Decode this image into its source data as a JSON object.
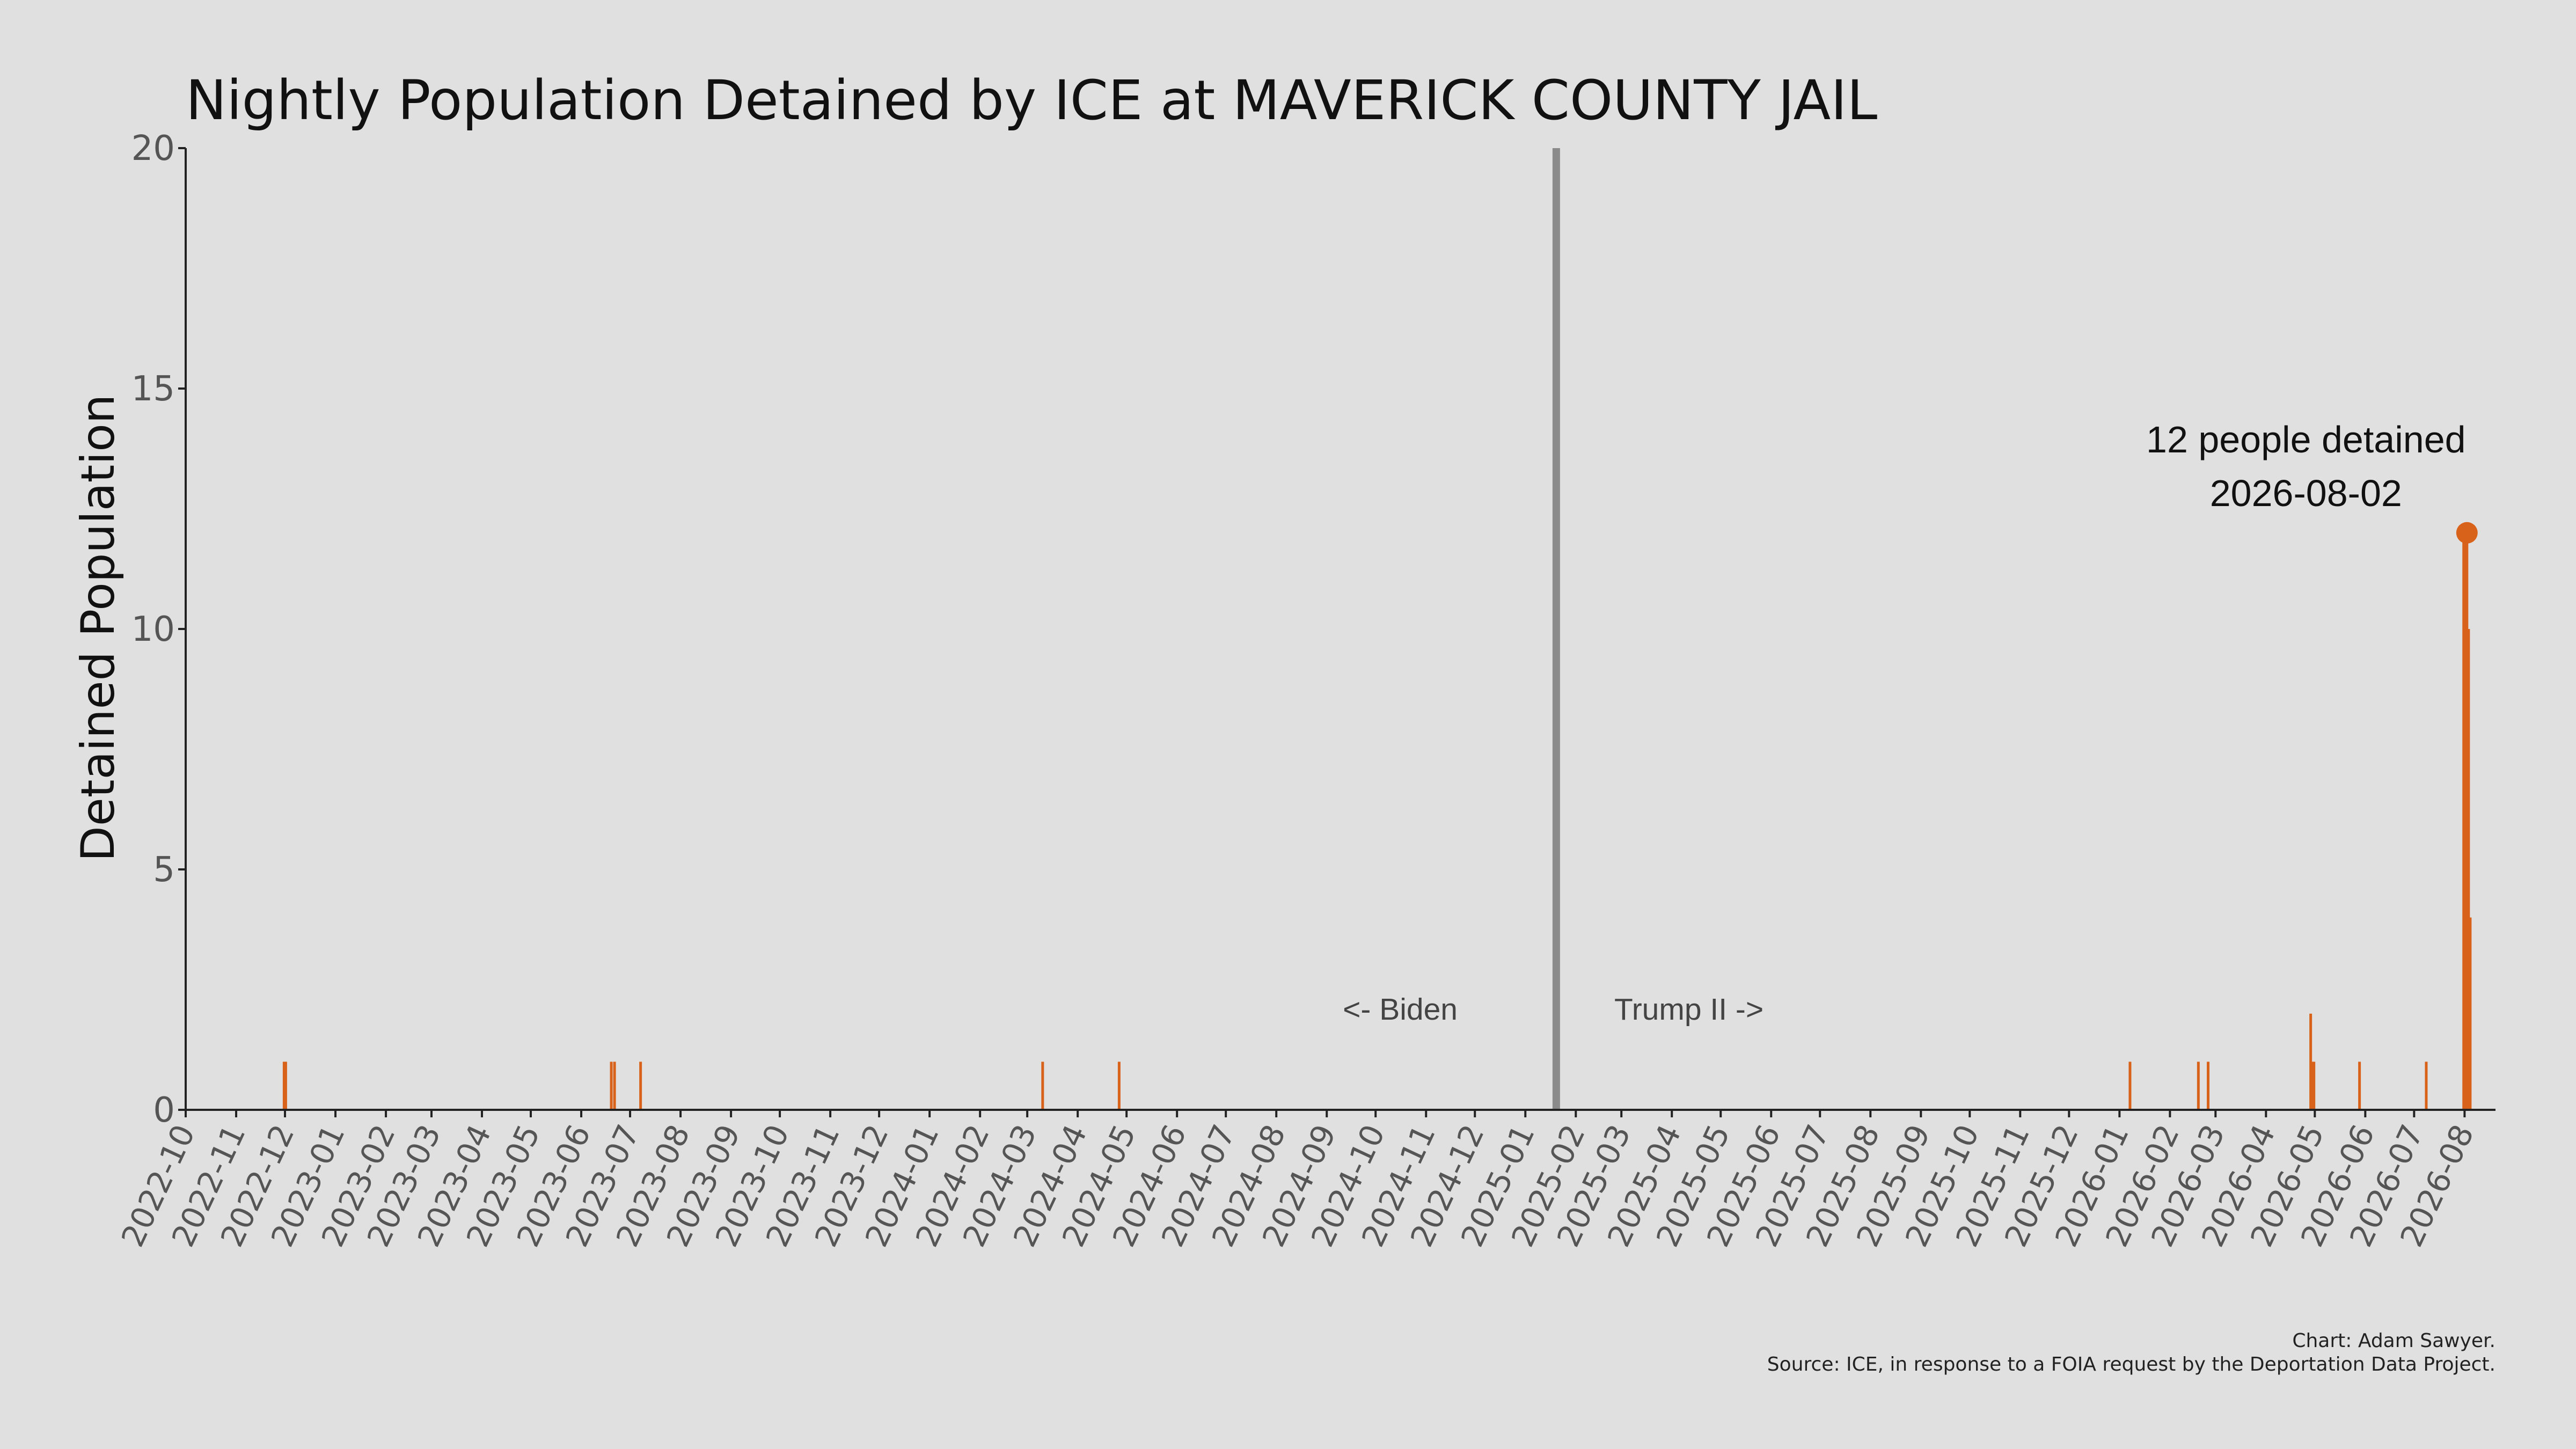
{
  "chart_data": {
    "type": "bar",
    "title": "Nightly Population Detained by ICE at MAVERICK COUNTY JAIL",
    "xlabel": "",
    "ylabel": "Detained Population",
    "ylim": [
      0,
      20
    ],
    "y_ticks": [
      0,
      5,
      10,
      15,
      20
    ],
    "xlim": [
      "2022-10-01",
      "2026-08-20"
    ],
    "x_tick_labels": [
      "2022-10",
      "2022-11",
      "2022-12",
      "2023-01",
      "2023-02",
      "2023-03",
      "2023-04",
      "2023-05",
      "2023-06",
      "2023-07",
      "2023-08",
      "2023-09",
      "2023-10",
      "2023-11",
      "2023-12",
      "2024-01",
      "2024-02",
      "2024-03",
      "2024-04",
      "2024-05",
      "2024-06",
      "2024-07",
      "2024-08",
      "2024-09",
      "2024-10",
      "2024-11",
      "2024-12",
      "2025-01",
      "2025-02",
      "2025-03",
      "2025-04",
      "2025-05",
      "2025-06",
      "2025-07",
      "2025-08",
      "2025-09",
      "2025-10",
      "2025-11",
      "2025-12",
      "2026-01",
      "2026-02",
      "2026-03",
      "2026-04",
      "2026-05",
      "2026-06",
      "2026-07",
      "2026-08"
    ],
    "grid": false,
    "bar_color": "#d9621a",
    "series": [
      {
        "x": [
          "2022-11-30",
          "2022-12-01",
          "2023-06-19",
          "2023-06-21",
          "2023-07-07",
          "2024-03-10",
          "2024-04-26",
          "2026-01-07",
          "2026-02-18",
          "2026-02-24",
          "2026-04-28",
          "2026-04-29",
          "2026-04-30",
          "2026-05-28",
          "2026-07-08",
          "2026-07-31",
          "2026-08-01",
          "2026-08-02",
          "2026-08-03",
          "2026-08-04"
        ],
        "values": [
          1,
          1,
          1,
          1,
          1,
          1,
          1,
          1,
          1,
          1,
          2,
          1,
          1,
          1,
          1,
          12,
          12,
          12,
          10,
          4
        ]
      }
    ],
    "reference_line": {
      "x": "2025-01-20",
      "color": "#8a8a8a"
    },
    "era_labels": {
      "left": "<- Biden",
      "right": "Trump II ->"
    },
    "highlight": {
      "x": "2026-08-02",
      "value": 12,
      "line1": "12 people detained",
      "line2": "2026-08-02"
    },
    "credits": {
      "line1": "Chart: Adam Sawyer.",
      "line2": "Source: ICE, in response to a FOIA request by the Deportation Data Project."
    }
  }
}
